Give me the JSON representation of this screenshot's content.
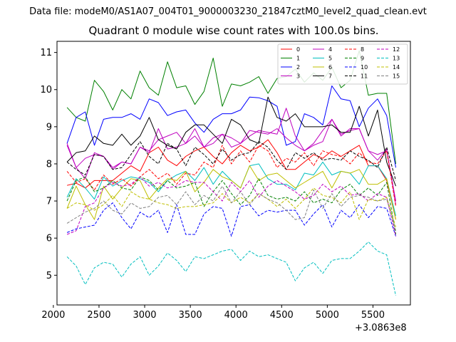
{
  "suptitle": "Data file: modeM0/AS1A07_004T01_9000003230_21847cztM0_level2_quad_clean.evt",
  "chart_data": {
    "type": "line",
    "title": "Quadrant 0 module wise count rates with 100.0s bins.",
    "xlabel": "",
    "ylabel": "",
    "x_offset_label": "+3.0863e8",
    "xlim": [
      2040,
      5910
    ],
    "ylim": [
      4.2,
      11.3
    ],
    "xticks": [
      2000,
      2500,
      3000,
      3500,
      4000,
      4500,
      5000,
      5500
    ],
    "yticks": [
      5,
      6,
      7,
      8,
      9,
      10,
      11
    ],
    "grid": false,
    "legend_position": "top-right",
    "x": [
      2150,
      2250,
      2350,
      2450,
      2550,
      2650,
      2750,
      2850,
      2950,
      3050,
      3150,
      3250,
      3350,
      3450,
      3550,
      3650,
      3750,
      3850,
      3950,
      4050,
      4150,
      4250,
      4350,
      4450,
      4550,
      4650,
      4750,
      4850,
      4950,
      5050,
      5150,
      5250,
      5350,
      5450,
      5550,
      5650,
      5750
    ],
    "series": [
      {
        "name": "0",
        "color": "#ff0000",
        "dash": "solid",
        "values": [
          7.42,
          7.48,
          7.35,
          7.55,
          7.55,
          7.55,
          7.75,
          7.95,
          7.8,
          8.3,
          8.45,
          8.1,
          7.95,
          8.2,
          8.35,
          8.45,
          8.2,
          8.0,
          8.3,
          8.5,
          8.35,
          8.45,
          8.65,
          8.3,
          7.85,
          7.85,
          8.05,
          8.25,
          8.15,
          8.35,
          8.2,
          8.35,
          8.5,
          7.95,
          7.95,
          7.55,
          6.5
        ]
      },
      {
        "name": "1",
        "color": "#008000",
        "dash": "solid",
        "values": [
          9.52,
          9.25,
          9.15,
          10.25,
          9.95,
          9.45,
          10.0,
          9.75,
          10.5,
          10.05,
          9.85,
          10.75,
          10.05,
          10.1,
          9.6,
          9.95,
          10.85,
          9.55,
          10.15,
          10.1,
          10.2,
          10.35,
          9.9,
          10.3,
          10.35,
          10.55,
          10.2,
          10.45,
          10.25,
          10.6,
          10.05,
          10.25,
          11.05,
          9.85,
          9.9,
          9.9,
          8.0
        ]
      },
      {
        "name": "2",
        "color": "#0000ff",
        "dash": "solid",
        "values": [
          8.55,
          9.25,
          9.4,
          8.5,
          9.2,
          9.25,
          9.25,
          9.35,
          9.2,
          9.75,
          9.65,
          9.3,
          9.4,
          9.45,
          9.1,
          8.85,
          9.2,
          9.35,
          9.35,
          9.45,
          9.8,
          9.78,
          9.7,
          9.55,
          8.5,
          8.6,
          9.35,
          9.25,
          9.05,
          10.1,
          9.75,
          9.7,
          9.0,
          9.5,
          9.75,
          9.3,
          7.9
        ]
      },
      {
        "name": "3",
        "color": "#bf00bf",
        "dash": "solid",
        "values": [
          8.5,
          7.9,
          7.6,
          8.3,
          8.2,
          7.9,
          8.05,
          8.0,
          8.45,
          8.3,
          8.95,
          8.4,
          8.45,
          8.55,
          8.75,
          8.45,
          8.55,
          8.8,
          8.45,
          8.55,
          8.9,
          8.85,
          8.8,
          8.95,
          8.7,
          8.5,
          8.35,
          8.55,
          8.9,
          9.2,
          8.75,
          8.95,
          8.95,
          8.35,
          8.1,
          8.4,
          6.9
        ]
      },
      {
        "name": "4",
        "color": "#bf00bf",
        "dash": "solid",
        "values": [
          8.55,
          7.9,
          8.15,
          8.25,
          8.2,
          7.85,
          8.05,
          8.0,
          8.45,
          8.35,
          8.65,
          8.75,
          8.85,
          8.55,
          8.95,
          8.45,
          8.7,
          8.8,
          8.7,
          8.55,
          8.75,
          8.9,
          8.85,
          8.8,
          9.5,
          8.75,
          8.35,
          8.5,
          8.6,
          9.2,
          8.8,
          8.9,
          8.95,
          8.35,
          8.25,
          8.35,
          7.0
        ]
      },
      {
        "name": "5",
        "color": "#00bfbf",
        "dash": "solid",
        "values": [
          7.1,
          7.6,
          7.35,
          7.05,
          7.65,
          7.4,
          7.55,
          7.65,
          7.6,
          7.5,
          7.25,
          7.55,
          7.7,
          7.8,
          7.55,
          7.9,
          7.45,
          7.8,
          7.55,
          7.35,
          7.95,
          8.0,
          7.6,
          7.45,
          7.45,
          7.3,
          7.75,
          7.7,
          8.05,
          7.7,
          7.8,
          7.75,
          7.45,
          7.95,
          7.95,
          7.6,
          6.6
        ]
      },
      {
        "name": "6",
        "color": "#bfbf00",
        "dash": "solid",
        "values": [
          6.8,
          7.4,
          6.9,
          6.5,
          7.4,
          7.05,
          7.35,
          7.6,
          7.55,
          7.05,
          7.35,
          7.6,
          7.55,
          7.8,
          7.25,
          7.5,
          7.85,
          7.65,
          7.55,
          7.35,
          7.95,
          7.55,
          7.7,
          7.75,
          7.55,
          7.35,
          7.5,
          7.65,
          7.8,
          7.35,
          7.8,
          7.75,
          7.85,
          7.45,
          7.45,
          7.6,
          6.5
        ]
      },
      {
        "name": "7",
        "color": "#000000",
        "dash": "solid",
        "values": [
          8.05,
          8.3,
          8.35,
          8.75,
          8.55,
          8.5,
          8.8,
          8.5,
          8.75,
          9.25,
          8.65,
          8.5,
          8.4,
          8.85,
          9.05,
          9.05,
          8.8,
          8.55,
          9.2,
          9.05,
          8.65,
          8.55,
          9.8,
          9.25,
          9.15,
          9.35,
          9.0,
          9.0,
          9.0,
          9.05,
          8.85,
          8.85,
          9.55,
          8.75,
          9.45,
          8.05,
          7.4
        ]
      },
      {
        "name": "8",
        "color": "#ff0000",
        "dash": "dashed",
        "values": [
          7.8,
          7.5,
          7.6,
          7.3,
          7.7,
          7.45,
          7.6,
          7.4,
          7.65,
          7.85,
          7.6,
          7.75,
          7.45,
          7.75,
          7.7,
          8.05,
          7.9,
          8.5,
          8.0,
          8.35,
          8.05,
          8.5,
          8.35,
          7.9,
          8.15,
          8.05,
          8.3,
          7.95,
          8.35,
          8.25,
          8.2,
          8.0,
          8.3,
          8.05,
          8.0,
          8.35,
          6.85
        ]
      },
      {
        "name": "9",
        "color": "#008000",
        "dash": "dashed",
        "values": [
          7.0,
          7.55,
          7.65,
          7.25,
          7.35,
          7.55,
          7.35,
          7.3,
          7.65,
          7.55,
          7.3,
          7.55,
          7.35,
          7.4,
          7.5,
          6.85,
          7.25,
          7.55,
          7.2,
          6.9,
          7.15,
          7.6,
          7.15,
          7.05,
          7.1,
          7.0,
          7.25,
          6.95,
          7.05,
          6.95,
          7.3,
          7.45,
          7.15,
          7.35,
          7.15,
          7.5,
          6.1
        ]
      },
      {
        "name": "10",
        "color": "#0000ff",
        "dash": "dashed",
        "values": [
          6.15,
          6.25,
          6.3,
          6.35,
          6.75,
          6.95,
          6.55,
          6.25,
          6.7,
          6.55,
          6.75,
          6.15,
          6.9,
          6.1,
          6.1,
          6.65,
          6.85,
          6.8,
          6.05,
          6.85,
          6.9,
          6.6,
          6.75,
          6.7,
          6.75,
          6.75,
          6.35,
          6.65,
          6.9,
          6.3,
          6.75,
          6.55,
          6.9,
          6.55,
          6.85,
          6.8,
          6.05
        ]
      },
      {
        "name": "11",
        "color": "#000000",
        "dash": "dashed",
        "values": [
          8.05,
          7.85,
          7.7,
          8.25,
          8.2,
          7.85,
          7.9,
          8.25,
          8.6,
          8.2,
          8.0,
          8.55,
          8.4,
          7.95,
          8.45,
          8.25,
          8.0,
          8.4,
          8.1,
          8.25,
          8.3,
          8.6,
          8.45,
          8.1,
          7.85,
          8.3,
          8.15,
          8.3,
          8.1,
          8.15,
          8.1,
          8.35,
          8.2,
          8.1,
          7.9,
          8.45,
          7.55
        ]
      },
      {
        "name": "12",
        "color": "#bf00bf",
        "dash": "dashed",
        "values": [
          6.1,
          6.2,
          6.85,
          6.95,
          7.35,
          7.5,
          7.4,
          7.45,
          7.65,
          7.4,
          7.5,
          7.35,
          7.4,
          7.55,
          7.5,
          7.5,
          7.25,
          7.0,
          7.5,
          7.25,
          7.55,
          7.1,
          7.4,
          7.55,
          7.4,
          7.25,
          7.05,
          7.15,
          7.45,
          7.25,
          7.4,
          7.15,
          7.2,
          7.0,
          7.2,
          7.1,
          6.05
        ]
      },
      {
        "name": "13",
        "color": "#00bfbf",
        "dash": "dashed",
        "values": [
          5.5,
          5.25,
          4.75,
          5.2,
          5.35,
          5.3,
          4.95,
          5.3,
          5.5,
          5.0,
          5.25,
          5.6,
          5.4,
          5.1,
          5.5,
          5.45,
          5.55,
          5.65,
          5.7,
          5.4,
          5.65,
          5.5,
          5.55,
          5.45,
          5.35,
          4.85,
          5.2,
          5.35,
          5.05,
          5.4,
          5.45,
          5.45,
          5.65,
          5.9,
          5.65,
          5.55,
          4.45
        ]
      },
      {
        "name": "14",
        "color": "#bfbf00",
        "dash": "dashed",
        "values": [
          6.8,
          6.95,
          6.9,
          6.75,
          6.9,
          7.15,
          6.85,
          7.25,
          7.1,
          7.05,
          6.95,
          6.9,
          6.8,
          6.85,
          6.85,
          6.9,
          6.95,
          7.2,
          6.95,
          7.1,
          6.95,
          7.2,
          7.05,
          6.85,
          7.05,
          6.8,
          7.05,
          7.35,
          7.15,
          7.1,
          6.95,
          7.25,
          6.5,
          7.05,
          7.0,
          7.1,
          6.3
        ]
      },
      {
        "name": "15",
        "color": "#808080",
        "dash": "dashed",
        "values": [
          6.4,
          6.55,
          6.7,
          6.8,
          7.0,
          6.75,
          6.65,
          6.95,
          6.8,
          6.85,
          7.1,
          7.15,
          6.9,
          7.25,
          6.9,
          7.15,
          7.0,
          7.4,
          6.95,
          7.25,
          6.9,
          7.2,
          7.05,
          6.95,
          6.75,
          6.5,
          6.55,
          7.3,
          6.8,
          7.2,
          6.85,
          7.1,
          7.15,
          7.1,
          7.0,
          7.05,
          6.2
        ]
      }
    ]
  }
}
